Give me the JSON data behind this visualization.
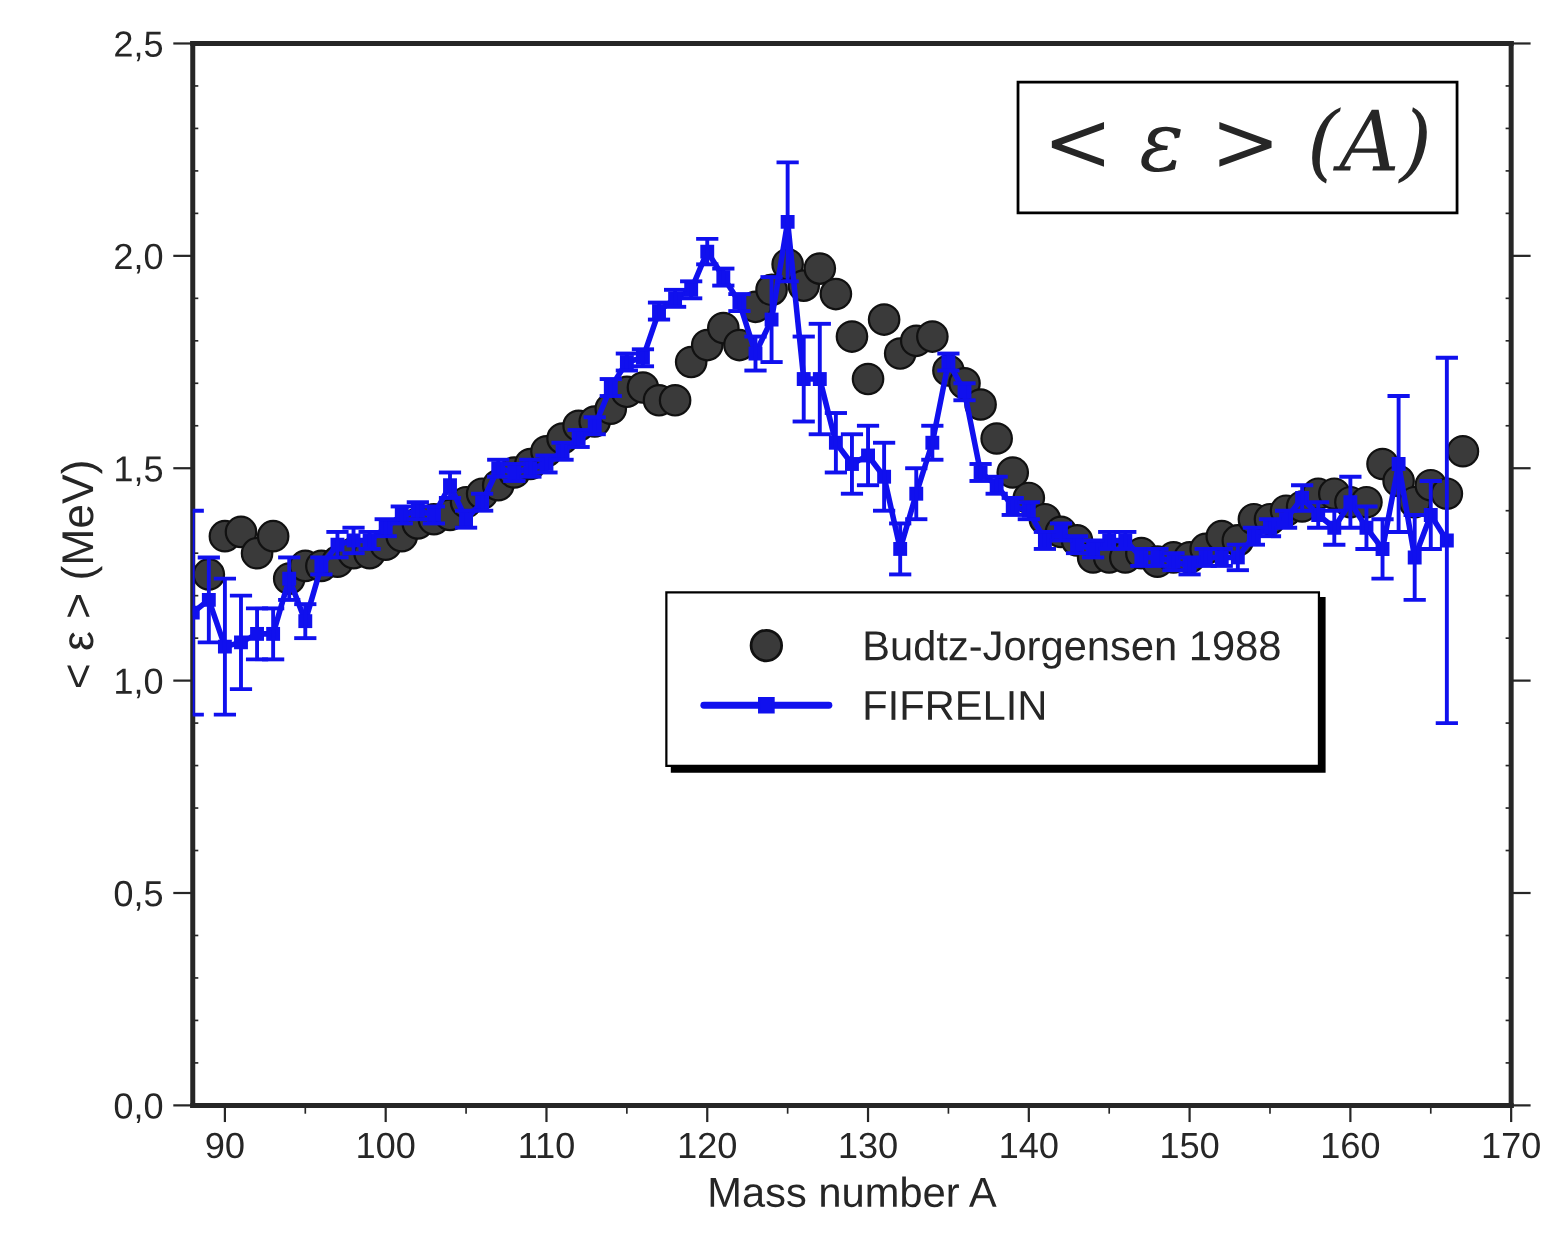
{
  "chart_data": {
    "type": "line",
    "xlabel": "Mass number A",
    "ylabel": "< ε > (MeV)",
    "xlim": [
      88,
      170
    ],
    "xticks": [
      90,
      100,
      110,
      120,
      130,
      140,
      150,
      160,
      170
    ],
    "ylim": [
      0,
      2.5
    ],
    "yticks": [
      {
        "value": 0,
        "label": "0,0"
      },
      {
        "value": 0.5,
        "label": "0,5"
      },
      {
        "value": 1.0,
        "label": "1,0"
      },
      {
        "value": 1.5,
        "label": "1,5"
      },
      {
        "value": 2.0,
        "label": "2,0"
      },
      {
        "value": 2.5,
        "label": "2,5"
      }
    ],
    "grid": false,
    "legend": "bottom right",
    "annotations": [
      "< ε > (A)"
    ],
    "series": [
      {
        "name": "Budtz-Jorgensen 1988",
        "type": "scatter",
        "marker": "circle",
        "color": "#3a3a3a",
        "x": [
          89,
          90,
          91,
          92,
          93,
          94,
          95,
          96,
          97,
          98,
          99,
          100,
          101,
          102,
          103,
          104,
          105,
          106,
          107,
          108,
          109,
          110,
          111,
          112,
          113,
          114,
          115,
          116,
          117,
          118,
          119,
          120,
          121,
          122,
          123,
          124,
          125,
          126,
          127,
          128,
          129,
          130,
          131,
          132,
          133,
          134,
          135,
          136,
          137,
          138,
          139,
          140,
          141,
          142,
          143,
          144,
          145,
          146,
          147,
          148,
          149,
          150,
          151,
          152,
          153,
          154,
          155,
          156,
          157,
          158,
          159,
          160,
          161,
          162,
          163,
          164,
          165,
          166,
          167
        ],
        "values": [
          1.25,
          1.34,
          1.35,
          1.3,
          1.34,
          1.24,
          1.27,
          1.27,
          1.28,
          1.3,
          1.3,
          1.32,
          1.34,
          1.37,
          1.38,
          1.39,
          1.42,
          1.44,
          1.46,
          1.49,
          1.51,
          1.54,
          1.57,
          1.6,
          1.61,
          1.64,
          1.68,
          1.69,
          1.66,
          1.66,
          1.75,
          1.79,
          1.83,
          1.79,
          1.88,
          1.92,
          1.98,
          1.93,
          1.97,
          1.91,
          1.81,
          1.71,
          1.85,
          1.77,
          1.8,
          1.81,
          1.73,
          1.7,
          1.65,
          1.57,
          1.49,
          1.43,
          1.38,
          1.35,
          1.33,
          1.29,
          1.29,
          1.29,
          1.3,
          1.28,
          1.29,
          1.29,
          1.31,
          1.34,
          1.33,
          1.38,
          1.38,
          1.4,
          1.41,
          1.44,
          1.44,
          1.42,
          1.42,
          1.51,
          1.47,
          1.42,
          1.46,
          1.44,
          1.54
        ]
      },
      {
        "name": "FIFRELIN",
        "marker": "square",
        "line_style": "solid",
        "color": "#1010ee",
        "x": [
          88,
          89,
          90,
          91,
          92,
          93,
          94,
          95,
          96,
          97,
          98,
          99,
          100,
          101,
          102,
          103,
          104,
          105,
          106,
          107,
          108,
          109,
          110,
          111,
          112,
          113,
          114,
          115,
          116,
          117,
          118,
          119,
          120,
          121,
          122,
          123,
          124,
          125,
          126,
          127,
          128,
          129,
          130,
          131,
          132,
          133,
          134,
          135,
          136,
          137,
          138,
          139,
          140,
          141,
          142,
          143,
          144,
          145,
          146,
          147,
          148,
          149,
          150,
          151,
          152,
          153,
          154,
          155,
          156,
          157,
          158,
          159,
          160,
          161,
          162,
          163,
          164,
          165,
          166
        ],
        "values": [
          1.16,
          1.19,
          1.08,
          1.09,
          1.11,
          1.11,
          1.24,
          1.14,
          1.27,
          1.32,
          1.33,
          1.33,
          1.36,
          1.39,
          1.4,
          1.39,
          1.46,
          1.38,
          1.42,
          1.5,
          1.49,
          1.5,
          1.51,
          1.54,
          1.57,
          1.6,
          1.69,
          1.75,
          1.76,
          1.87,
          1.9,
          1.92,
          2.01,
          1.95,
          1.89,
          1.77,
          1.85,
          2.08,
          1.71,
          1.71,
          1.56,
          1.51,
          1.53,
          1.48,
          1.31,
          1.44,
          1.56,
          1.75,
          1.68,
          1.49,
          1.46,
          1.41,
          1.4,
          1.33,
          1.35,
          1.32,
          1.31,
          1.33,
          1.33,
          1.29,
          1.29,
          1.28,
          1.27,
          1.29,
          1.29,
          1.29,
          1.34,
          1.36,
          1.38,
          1.43,
          1.39,
          1.36,
          1.42,
          1.36,
          1.31,
          1.51,
          1.29,
          1.39,
          1.33
        ],
        "errors": [
          0.24,
          0.1,
          0.16,
          0.11,
          0.06,
          0.06,
          0.05,
          0.04,
          0.02,
          0.03,
          0.03,
          0.02,
          0.02,
          0.02,
          0.02,
          0.02,
          0.03,
          0.02,
          0.02,
          0.02,
          0.02,
          0.02,
          0.02,
          0.02,
          0.02,
          0.02,
          0.02,
          0.02,
          0.02,
          0.02,
          0.02,
          0.02,
          0.03,
          0.02,
          0.02,
          0.04,
          0.1,
          0.14,
          0.1,
          0.13,
          0.07,
          0.07,
          0.07,
          0.08,
          0.06,
          0.06,
          0.04,
          0.02,
          0.02,
          0.02,
          0.02,
          0.02,
          0.02,
          0.02,
          0.02,
          0.02,
          0.02,
          0.02,
          0.02,
          0.02,
          0.02,
          0.02,
          0.02,
          0.02,
          0.02,
          0.03,
          0.02,
          0.02,
          0.02,
          0.03,
          0.03,
          0.04,
          0.06,
          0.05,
          0.07,
          0.16,
          0.1,
          0.08,
          0.43
        ]
      }
    ]
  }
}
